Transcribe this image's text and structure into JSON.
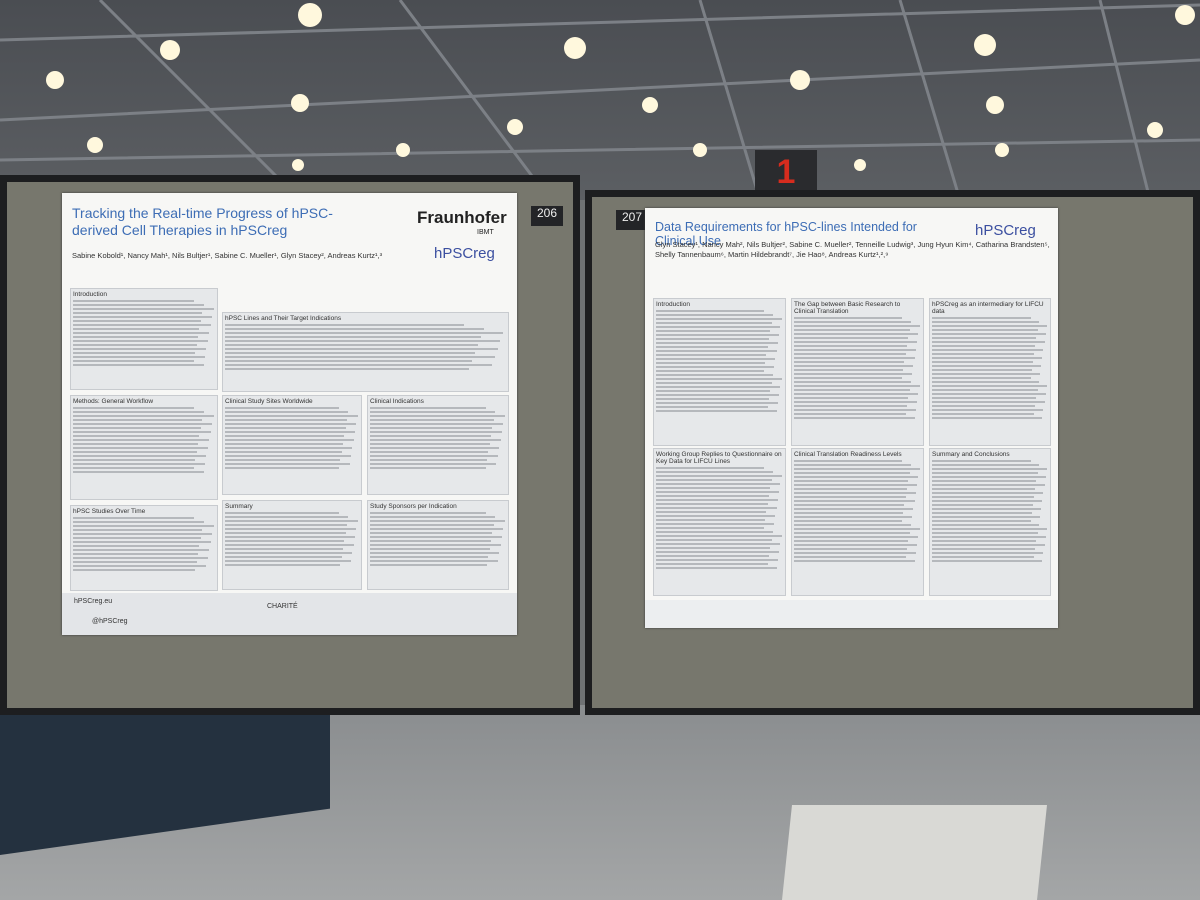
{
  "sign": "1",
  "posters": [
    {
      "number": "206",
      "title": "Tracking the Real-time Progress of hPSC-derived Cell Therapies in hPSCreg",
      "logo": "Fraunhofer",
      "logo_sub": "IBMT",
      "brand": "hPSCreg",
      "authors": "Sabine Kobold¹, Nancy Mah¹, Nils Bultjer¹, Sabine C. Mueller¹, Glyn Stacey², Andreas Kurtz¹,³",
      "sections": [
        "Introduction",
        "hPSC Lines and Their Target Indications",
        "Methods: General Workflow",
        "Clinical Study Sites Worldwide",
        "Clinical Indications",
        "hPSC Studies Over Time",
        "Summary",
        "Study Sponsors per Indication"
      ],
      "footer": [
        "hPSCreg.eu",
        "@hPSCreg",
        "CHARITÉ"
      ]
    },
    {
      "number": "207",
      "title": "Data Requirements for hPSC-lines Intended for Clinical Use",
      "brand": "hPSCreg",
      "authors": "Glyn Stacey¹, Nancy Mah², Nils Bultjer², Sabine C. Mueller², Tenneille Ludwig³, Jung Hyun Kim⁴, Catharina Brandsten⁵, Shelly Tannenbaum⁶, Martin Hildebrandt⁷, Jie Hao⁸, Andreas Kurtz¹,²,⁹",
      "sections": [
        "Introduction",
        "The Gap between Basic Research to Clinical Translation",
        "hPSCreg as an intermediary for LIFCU data",
        "Working Group Replies to Questionnaire on Key Data for LIFCU Lines",
        "Clinical Translation Readiness Levels",
        "Summary and Conclusions"
      ]
    }
  ]
}
